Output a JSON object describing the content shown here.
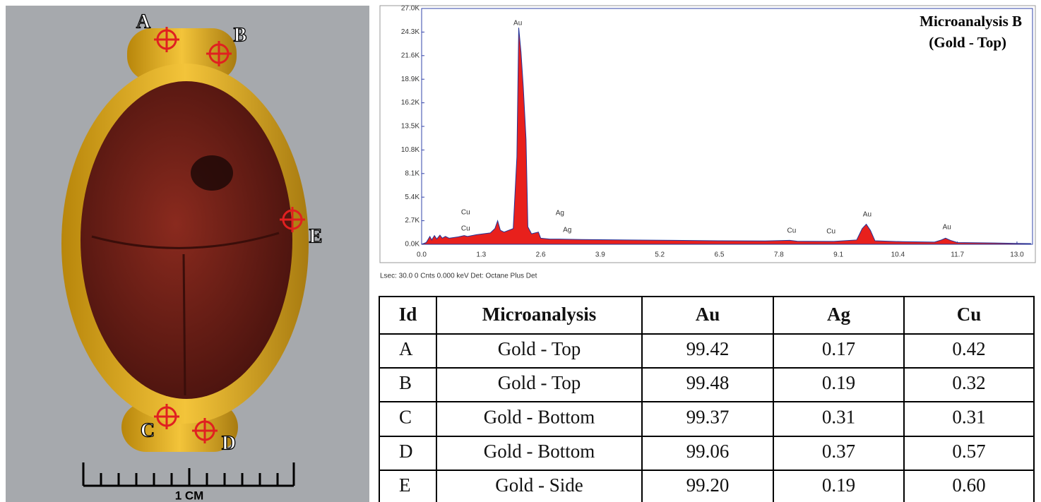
{
  "photo": {
    "labels": [
      "A",
      "B",
      "C",
      "D",
      "E"
    ],
    "scale_label": "1 CM"
  },
  "chart_data": {
    "type": "area",
    "title": "Microanalysis B",
    "subtitle": "(Gold - Top)",
    "caption": "Lsec: 30.0 0 Cnts  0.000 keV Det: Octane Plus Det",
    "x": [
      0.0,
      0.1,
      0.18,
      0.22,
      0.28,
      0.33,
      0.4,
      0.45,
      0.52,
      0.6,
      0.8,
      0.93,
      1.0,
      1.2,
      1.5,
      1.6,
      1.66,
      1.72,
      1.8,
      2.0,
      2.08,
      2.12,
      2.17,
      2.22,
      2.28,
      2.32,
      2.4,
      2.55,
      2.6,
      2.8,
      3.0,
      3.5,
      4.5,
      5.5,
      6.5,
      7.5,
      8.04,
      8.2,
      9.0,
      9.5,
      9.62,
      9.71,
      9.8,
      9.9,
      10.5,
      11.2,
      11.35,
      11.44,
      11.55,
      11.7,
      12.5,
      13.0,
      13.3
    ],
    "series": [
      {
        "color": "#e8201c",
        "values": [
          0,
          200,
          900,
          500,
          1000,
          600,
          1050,
          700,
          900,
          700,
          850,
          1000,
          900,
          1100,
          1300,
          1800,
          2700,
          1600,
          1400,
          1800,
          10000,
          24800,
          22000,
          18000,
          12000,
          2000,
          1200,
          1400,
          700,
          600,
          600,
          550,
          500,
          450,
          400,
          380,
          450,
          350,
          330,
          500,
          1800,
          2300,
          1600,
          400,
          300,
          250,
          500,
          700,
          450,
          200,
          150,
          100,
          80
        ]
      }
    ],
    "annotations": [
      {
        "text": "Au",
        "x": 2.1,
        "y": 25300
      },
      {
        "text": "Cu",
        "x": 0.96,
        "y": 3640
      },
      {
        "text": "Cu",
        "x": 0.96,
        "y": 1780
      },
      {
        "text": "Ag",
        "x": 3.02,
        "y": 3560
      },
      {
        "text": "Ag",
        "x": 3.18,
        "y": 1620
      },
      {
        "text": "Cu",
        "x": 8.08,
        "y": 1540
      },
      {
        "text": "Cu",
        "x": 8.94,
        "y": 1460
      },
      {
        "text": "Au",
        "x": 9.73,
        "y": 3400
      },
      {
        "text": "Au",
        "x": 11.47,
        "y": 1940
      }
    ],
    "xlim": [
      0,
      13.34
    ],
    "ylim": [
      0,
      27000
    ],
    "xticks": [
      {
        "value": 0,
        "label": "0.0"
      },
      1.3,
      2.6,
      3.9,
      5.2,
      6.5,
      7.8,
      9.1,
      10.4,
      11.7,
      {
        "value": 13,
        "label": "13.0"
      }
    ],
    "yticks": [
      {
        "value": 0,
        "label": "0.0K"
      },
      {
        "value": 2700,
        "label": "2.7K"
      },
      {
        "value": 5400,
        "label": "5.4K"
      },
      {
        "value": 8100,
        "label": "8.1K"
      },
      {
        "value": 10800,
        "label": "10.8K"
      },
      {
        "value": 13500,
        "label": "13.5K"
      },
      {
        "value": 16200,
        "label": "16.2K"
      },
      {
        "value": 18900,
        "label": "18.9K"
      },
      {
        "value": 21600,
        "label": "21.6K"
      },
      {
        "value": 24300,
        "label": "24.3K"
      },
      {
        "value": 27000,
        "label": "27.0K"
      }
    ]
  },
  "table": {
    "header": [
      "Id",
      "Microanalysis",
      "Au",
      "Ag",
      "Cu"
    ],
    "rows": [
      [
        "A",
        "Gold - Top",
        "99.42",
        "0.17",
        "0.42"
      ],
      [
        "B",
        "Gold - Top",
        "99.48",
        "0.19",
        "0.32"
      ],
      [
        "C",
        "Gold - Bottom",
        "99.37",
        "0.31",
        "0.31"
      ],
      [
        "D",
        "Gold - Bottom",
        "99.06",
        "0.37",
        "0.57"
      ],
      [
        "E",
        "Gold - Side",
        "99.20",
        "0.19",
        "0.60"
      ]
    ]
  }
}
